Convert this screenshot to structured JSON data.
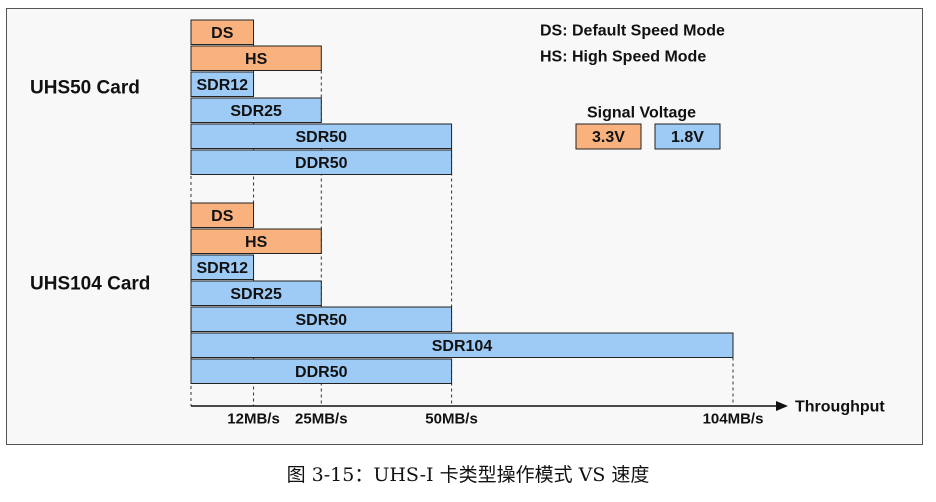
{
  "chart_data": {
    "type": "bar",
    "orientation": "horizontal",
    "unit": "MB/s",
    "xlabel": "Throughput",
    "x_ticks": [
      {
        "value": 12,
        "label": "12MB/s"
      },
      {
        "value": 25,
        "label": "25MB/s"
      },
      {
        "value": 50,
        "label": "50MB/s"
      },
      {
        "value": 104,
        "label": "104MB/s"
      }
    ],
    "groups": [
      {
        "name": "UHS50 Card",
        "modes": [
          {
            "name": "DS",
            "value": 12,
            "voltage": "3.3V"
          },
          {
            "name": "HS",
            "value": 25,
            "voltage": "3.3V"
          },
          {
            "name": "SDR12",
            "value": 12,
            "voltage": "1.8V"
          },
          {
            "name": "SDR25",
            "value": 25,
            "voltage": "1.8V"
          },
          {
            "name": "SDR50",
            "value": 50,
            "voltage": "1.8V"
          },
          {
            "name": "DDR50",
            "value": 50,
            "voltage": "1.8V"
          }
        ]
      },
      {
        "name": "UHS104 Card",
        "modes": [
          {
            "name": "DS",
            "value": 12,
            "voltage": "3.3V"
          },
          {
            "name": "HS",
            "value": 25,
            "voltage": "3.3V"
          },
          {
            "name": "SDR12",
            "value": 12,
            "voltage": "1.8V"
          },
          {
            "name": "SDR25",
            "value": 25,
            "voltage": "1.8V"
          },
          {
            "name": "SDR50",
            "value": 50,
            "voltage": "1.8V"
          },
          {
            "name": "SDR104",
            "value": 104,
            "voltage": "1.8V"
          },
          {
            "name": "DDR50",
            "value": 50,
            "voltage": "1.8V"
          }
        ]
      }
    ],
    "legend": {
      "definitions": [
        "DS: Default Speed Mode",
        "HS: High Speed Mode"
      ],
      "voltage_title": "Signal Voltage",
      "voltages": [
        {
          "label": "3.3V",
          "color": "#f9b27e"
        },
        {
          "label": "1.8V",
          "color": "#9ecbf5"
        }
      ]
    },
    "colors": {
      "3.3V": "#f9b27e",
      "1.8V": "#9ecbf5"
    }
  },
  "caption": "图 3-15：UHS-I 卡类型操作模式 VS 速度"
}
